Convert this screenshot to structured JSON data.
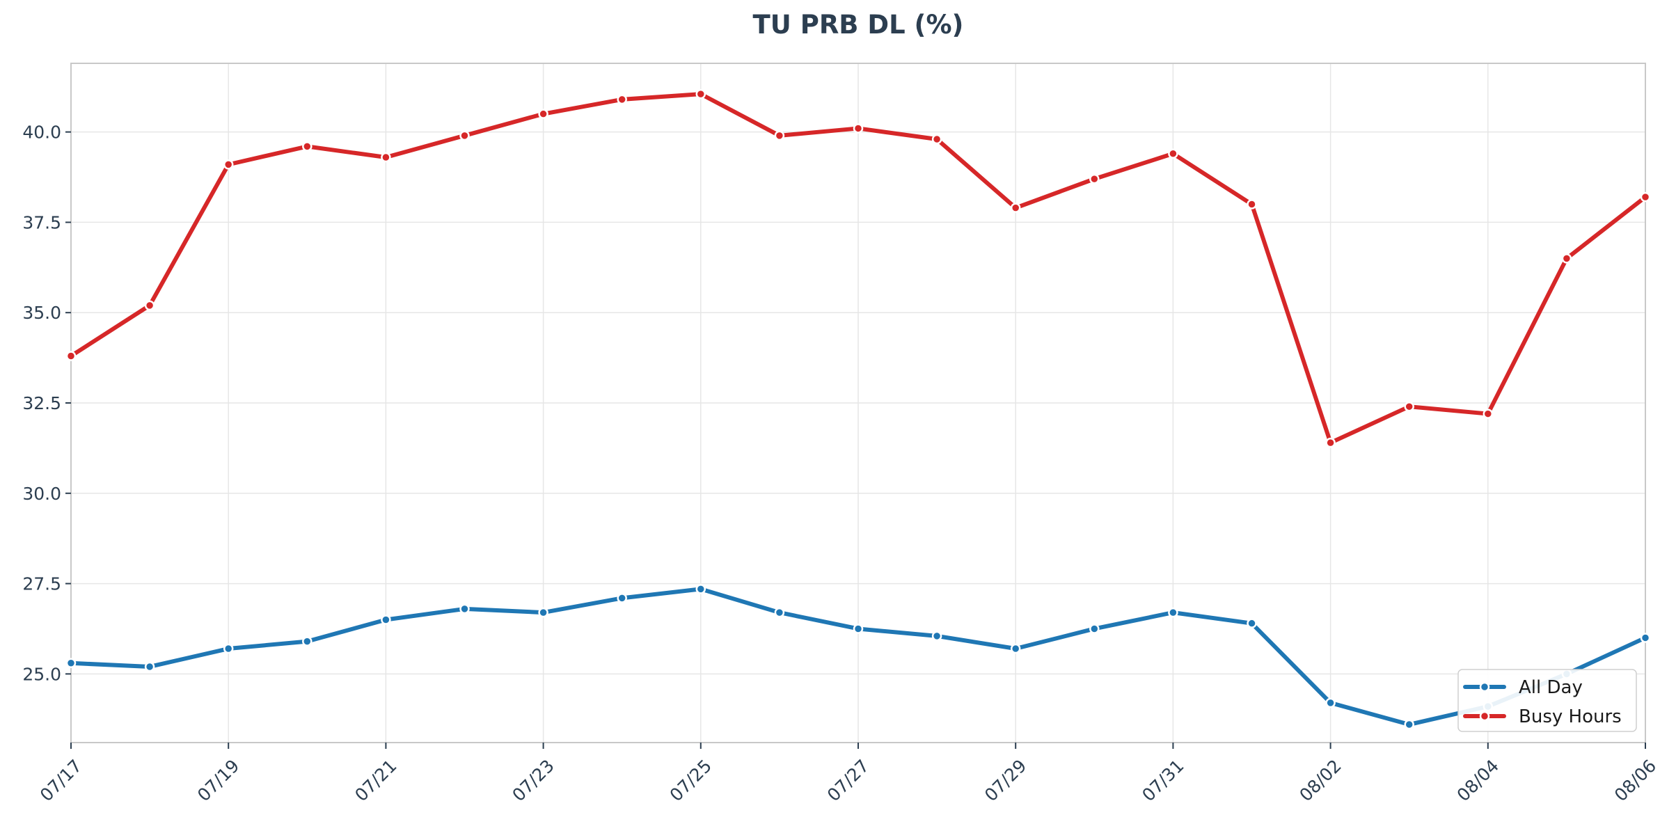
{
  "chart_data": {
    "type": "line",
    "title": "TU PRB DL (%)",
    "x": [
      "07/17",
      "07/18",
      "07/19",
      "07/20",
      "07/21",
      "07/22",
      "07/23",
      "07/24",
      "07/25",
      "07/26",
      "07/27",
      "07/28",
      "07/29",
      "07/30",
      "07/31",
      "08/01",
      "08/02",
      "08/03",
      "08/04",
      "08/05",
      "08/06"
    ],
    "x_tick_labels": [
      "07/17",
      "07/19",
      "07/21",
      "07/23",
      "07/25",
      "07/27",
      "07/29",
      "07/31",
      "08/02",
      "08/04",
      "08/06"
    ],
    "y_ticks": [
      "25.0",
      "27.5",
      "30.0",
      "32.5",
      "35.0",
      "37.5",
      "40.0"
    ],
    "ylim": [
      23.1,
      41.9
    ],
    "grid": true,
    "legend_position": "bottom-right",
    "series": [
      {
        "name": "All Day",
        "color": "#1f77b4",
        "values": [
          25.3,
          25.2,
          25.7,
          25.9,
          26.5,
          26.8,
          26.7,
          27.1,
          27.35,
          26.7,
          26.25,
          26.05,
          25.7,
          26.25,
          26.7,
          26.4,
          24.2,
          23.6,
          24.1,
          25.0,
          26.0
        ]
      },
      {
        "name": "Busy Hours",
        "color": "#d62728",
        "values": [
          33.8,
          35.2,
          39.1,
          39.6,
          39.3,
          39.9,
          40.5,
          40.9,
          41.05,
          39.9,
          40.1,
          39.8,
          37.9,
          38.7,
          39.4,
          38.0,
          31.4,
          32.4,
          32.2,
          36.5,
          38.2
        ]
      }
    ]
  }
}
